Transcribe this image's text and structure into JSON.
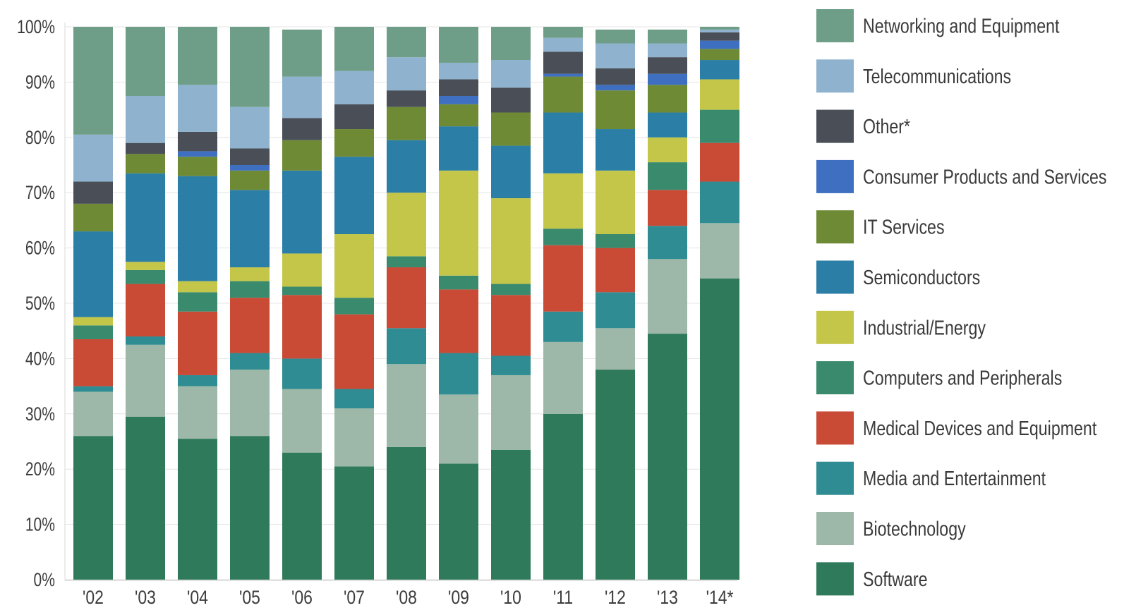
{
  "chart_data": {
    "type": "bar",
    "stacked": true,
    "title": "",
    "xlabel": "",
    "ylabel": "",
    "ylim": [
      0,
      100
    ],
    "yticks": [
      "0%",
      "10%",
      "20%",
      "30%",
      "40%",
      "50%",
      "60%",
      "70%",
      "80%",
      "90%",
      "100%"
    ],
    "grid": true,
    "legend_position": "right",
    "categories": [
      "'02",
      "'03",
      "'04",
      "'05",
      "'06",
      "'07",
      "'08",
      "'09",
      "'10",
      "'11",
      "'12",
      "'13",
      "'14*"
    ],
    "series": [
      {
        "name": "Software",
        "color": "#2e7a5a",
        "values": [
          26,
          29.5,
          25.5,
          26,
          23,
          20.5,
          24,
          21,
          23.5,
          30,
          38,
          44.5,
          54.5
        ]
      },
      {
        "name": "Biotechnology",
        "color": "#9db8a8",
        "values": [
          8,
          13,
          9.5,
          12,
          11.5,
          10.5,
          15,
          12.5,
          13.5,
          13,
          7.5,
          13.5,
          10
        ]
      },
      {
        "name": "Media and Entertainment",
        "color": "#2e8c92",
        "values": [
          1,
          1.5,
          2,
          3,
          5.5,
          3.5,
          6.5,
          7.5,
          3.5,
          5.5,
          6.5,
          6,
          7.5
        ]
      },
      {
        "name": "Medical Devices and Equipment",
        "color": "#c94a35",
        "values": [
          8.5,
          9.5,
          11.5,
          10,
          11.5,
          13.5,
          11,
          11.5,
          11,
          12,
          8,
          6.5,
          7
        ]
      },
      {
        "name": "Computers and Peripherals",
        "color": "#3a8a6e",
        "values": [
          2.5,
          2.5,
          3.5,
          3,
          1.5,
          3,
          2,
          2.5,
          2,
          3,
          2.5,
          5,
          6
        ]
      },
      {
        "name": "Industrial/Energy",
        "color": "#c4c64a",
        "values": [
          1.5,
          1.5,
          2,
          2.5,
          6,
          11.5,
          11.5,
          19,
          15.5,
          10,
          11.5,
          4.5,
          5.5
        ]
      },
      {
        "name": "Semiconductors",
        "color": "#2b7ea6",
        "values": [
          15.5,
          16,
          19,
          14,
          15,
          14,
          9.5,
          8,
          9.5,
          11,
          7.5,
          4.5,
          3.5
        ]
      },
      {
        "name": "IT Services",
        "color": "#6e8a35",
        "values": [
          5,
          3.5,
          3.5,
          3.5,
          5.5,
          5,
          6,
          4,
          6,
          6.5,
          7,
          5,
          2
        ]
      },
      {
        "name": "Consumer Products and Services",
        "color": "#3e6fc0",
        "values": [
          0,
          0,
          1,
          1,
          0,
          0,
          0,
          1.5,
          0,
          0.5,
          1,
          2,
          1.5
        ]
      },
      {
        "name": "Other*",
        "color": "#4a4f57",
        "values": [
          4,
          2,
          3.5,
          3,
          4,
          4.5,
          3,
          3,
          4.5,
          4,
          3,
          3,
          1.5
        ]
      },
      {
        "name": "Telecommunications",
        "color": "#8fb3cf",
        "values": [
          8.5,
          8.5,
          8.5,
          7.5,
          7.5,
          6,
          6,
          3,
          5,
          2.5,
          4.5,
          2.5,
          0.5
        ]
      },
      {
        "name": "Networking and Equipment",
        "color": "#6e9e87",
        "values": [
          19.5,
          12.5,
          10.5,
          14.5,
          8.5,
          8,
          5.5,
          6.5,
          6,
          2,
          2.5,
          2.5,
          0.5
        ]
      }
    ]
  }
}
